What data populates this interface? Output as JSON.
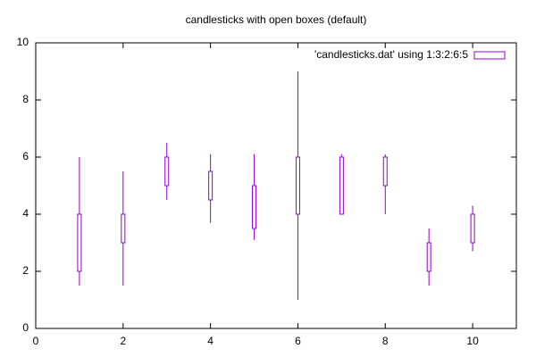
{
  "chart_data": {
    "type": "candlestick",
    "title": "candlesticks with open boxes (default)",
    "xlim": [
      0,
      11
    ],
    "xticks": [
      0,
      2,
      4,
      6,
      8,
      10
    ],
    "ylim": [
      0,
      10
    ],
    "yticks": [
      0,
      2,
      4,
      6,
      8,
      10
    ],
    "legend": "top-right",
    "series": [
      {
        "name": "'candlesticks.dat' using 1:3:2:6:5",
        "color": "#9400d3",
        "x": [
          1,
          2,
          3,
          4,
          5,
          6,
          7,
          8,
          9,
          10
        ],
        "open": [
          2,
          3,
          5,
          4.5,
          3.5,
          4,
          4,
          5,
          2,
          3
        ],
        "low": [
          1.5,
          1.5,
          4.5,
          3.7,
          3.1,
          1,
          4,
          4,
          1.5,
          2.7
        ],
        "high": [
          6,
          5.5,
          6.5,
          6.1,
          6.1,
          9,
          6.1,
          6.1,
          3.5,
          4.3
        ],
        "close": [
          4,
          4,
          6,
          5.5,
          5,
          6,
          6,
          6,
          3,
          4
        ]
      }
    ]
  }
}
